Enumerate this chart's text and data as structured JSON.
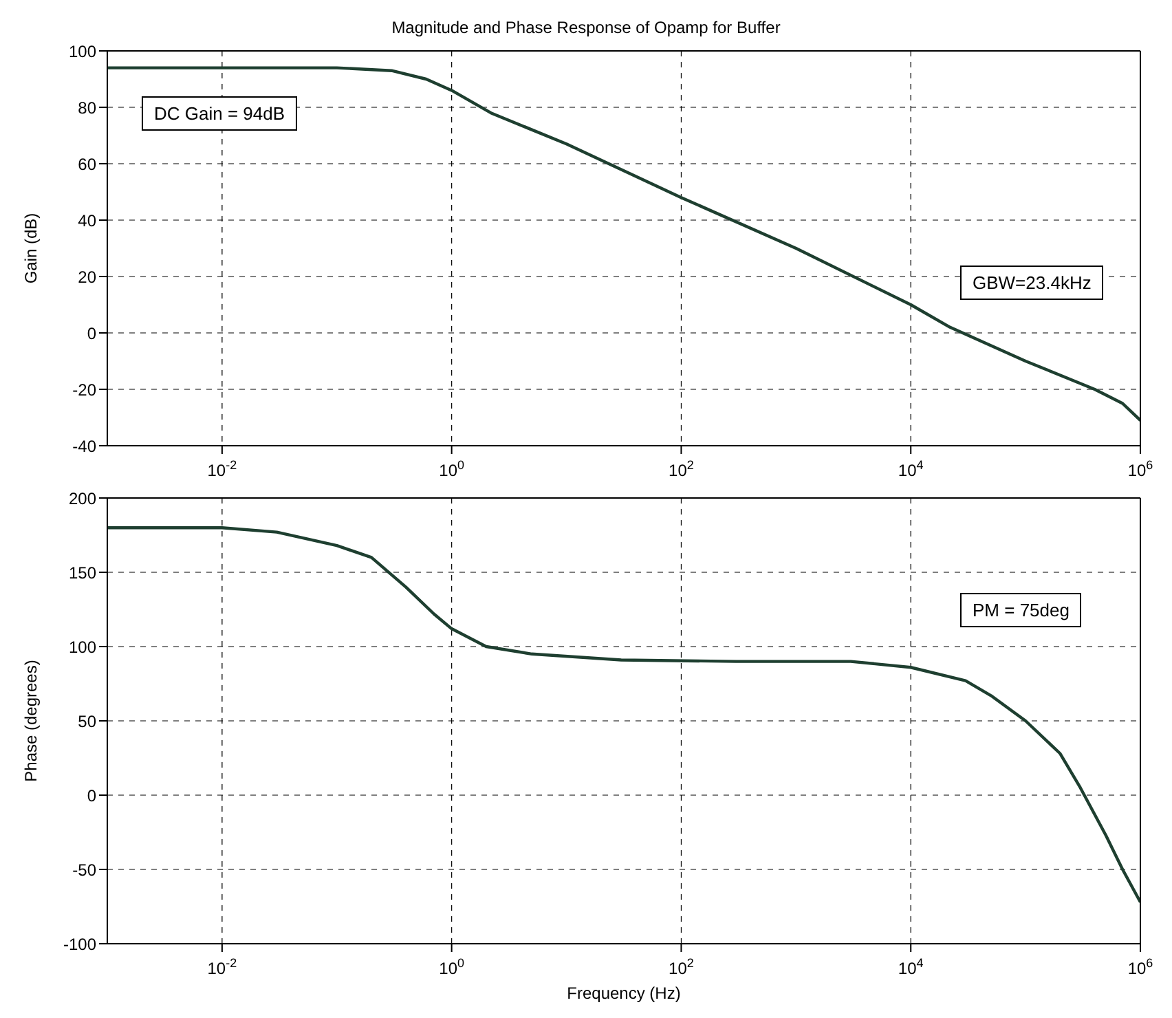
{
  "chart_data": [
    {
      "type": "line",
      "title": "Magnitude and Phase Response of Opamp for Buffer",
      "ylabel": "Gain (dB)",
      "log": "x",
      "grid": true,
      "legend": false,
      "marker": "none",
      "line_style": "solid",
      "x": [
        0.001,
        0.01,
        0.1,
        0.3,
        0.6,
        1,
        2.2,
        10,
        100,
        1000,
        10000,
        22000,
        100000,
        400000,
        700000,
        1000000
      ],
      "series": [
        {
          "color": "#1e3f30",
          "values": [
            94,
            94,
            94,
            93,
            90,
            86,
            78,
            67,
            48,
            30,
            10,
            2,
            -10,
            -20,
            -25,
            -31
          ]
        }
      ],
      "xlim": [
        0.001,
        1000000
      ],
      "xticks": [
        {
          "value": 0.01,
          "label": "10$^{-2}$"
        },
        {
          "value": 1,
          "label": "10$^{0}$"
        },
        {
          "value": 100,
          "label": "10$^{2}$"
        },
        {
          "value": 10000,
          "label": "10$^{4}$"
        },
        {
          "value": 1000000,
          "label": "10$^{6}$"
        }
      ],
      "ylim": [
        -40,
        100
      ],
      "yticks": [
        -40,
        -20,
        0,
        20,
        40,
        60,
        80,
        100
      ],
      "annotations": [
        "DC Gain = 94dB",
        "GBW=23.4kHz"
      ]
    },
    {
      "type": "line",
      "xlabel": "Frequency (Hz)",
      "ylabel": "Phase (degrees)",
      "log": "x",
      "grid": true,
      "legend": false,
      "marker": "none",
      "line_style": "solid",
      "x": [
        0.001,
        0.01,
        0.03,
        0.1,
        0.2,
        0.4,
        0.7,
        1,
        2,
        5,
        30,
        300,
        3000,
        10000,
        30000,
        50000,
        100000,
        200000,
        300000,
        500000,
        700000,
        1000000
      ],
      "series": [
        {
          "color": "#1e3f30",
          "values": [
            180,
            180,
            177,
            168,
            160,
            140,
            122,
            112,
            100,
            95,
            91,
            90,
            90,
            86,
            77,
            67,
            50,
            28,
            5,
            -27,
            -50,
            -72
          ]
        }
      ],
      "xlim": [
        0.001,
        1000000
      ],
      "xticks": [
        {
          "value": 0.01,
          "label": "10$^{-2}$"
        },
        {
          "value": 1,
          "label": "10$^{0}$"
        },
        {
          "value": 100,
          "label": "10$^{2}$"
        },
        {
          "value": 10000,
          "label": "10$^{4}$"
        },
        {
          "value": 1000000,
          "label": "10$^{6}$"
        }
      ],
      "ylim": [
        -100,
        200
      ],
      "yticks": [
        -100,
        -50,
        0,
        50,
        100,
        150,
        200
      ],
      "annotations": [
        "PM = 75deg"
      ]
    }
  ]
}
